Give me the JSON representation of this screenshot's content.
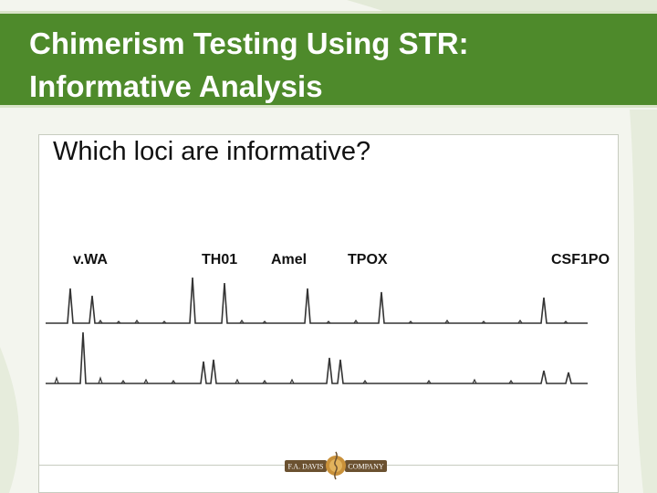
{
  "slide": {
    "title_line1": "Chimerism Testing Using STR:",
    "title_line2": "Informative Analysis",
    "question": "Which loci are informative?"
  },
  "loci": [
    "v.WA",
    "TH01",
    "Amel",
    "TPOX",
    "CSF1PO"
  ],
  "logo": {
    "left_text": "F.A. DAVIS",
    "right_text": "COMPANY"
  },
  "colors": {
    "title_bar": "#4e8a2b",
    "trace": "#333333"
  }
}
